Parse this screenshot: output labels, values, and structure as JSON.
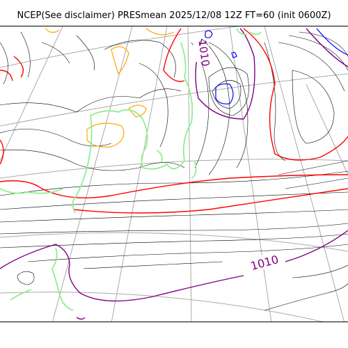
{
  "title": "NCEP(See disclaimer) PRESmean 2025/12/08 12Z FT=60 (init 0600Z)",
  "map": {
    "contour_labels": [
      {
        "text": "1010",
        "color": "#800080"
      },
      {
        "text": "1010",
        "color": "#800080"
      }
    ],
    "colors": {
      "isobar": "#000000",
      "isobar_1010": "#800080",
      "isobar_red": "#ff0000",
      "isobar_blue": "#0000ff",
      "isobar_orange": "#ffa500",
      "coast": "#90ee90",
      "graticule": "#aaaaaa"
    }
  }
}
